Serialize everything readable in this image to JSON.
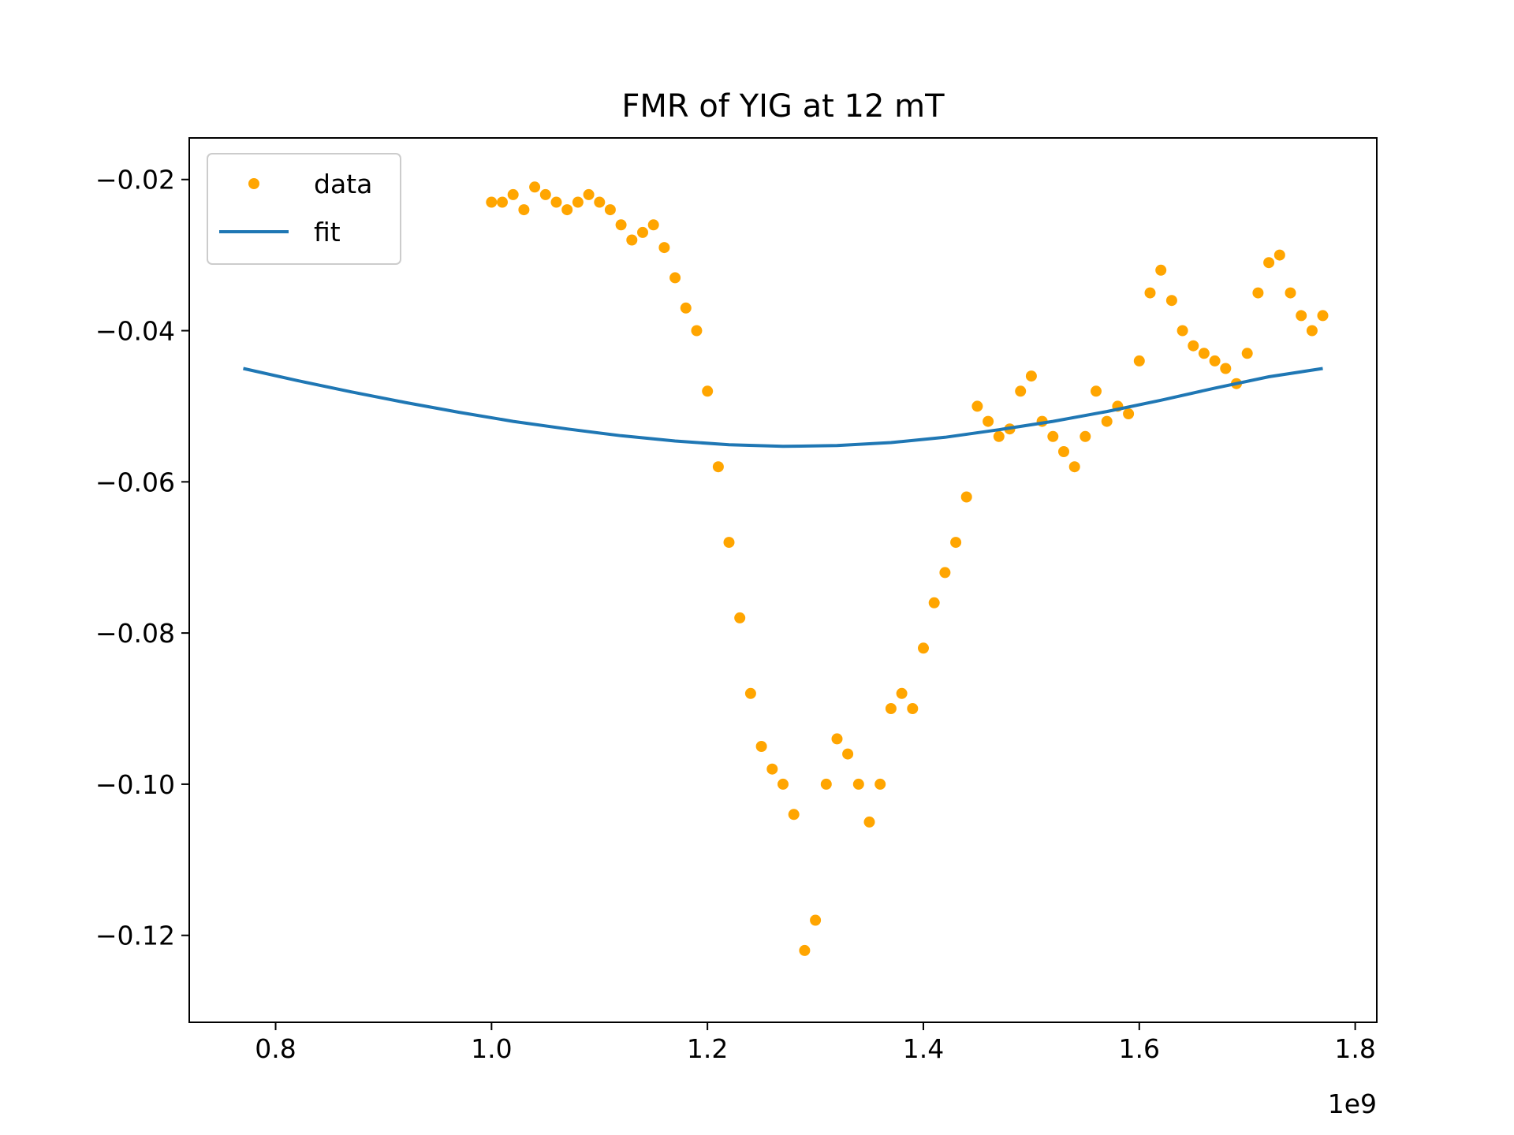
{
  "chart_data": {
    "type": "scatter",
    "title": "FMR of YIG at 12 mT",
    "xlabel": "",
    "ylabel": "",
    "x_offset_label": "1e9",
    "xlim": [
      0.72,
      1.82
    ],
    "ylim": [
      -0.1315,
      -0.0145
    ],
    "x_ticks": [
      0.8,
      1.0,
      1.2,
      1.4,
      1.6,
      1.8
    ],
    "x_tick_labels": [
      "0.8",
      "1.0",
      "1.2",
      "1.4",
      "1.6",
      "1.8"
    ],
    "y_ticks": [
      -0.02,
      -0.04,
      -0.06,
      -0.08,
      -0.1,
      -0.12
    ],
    "y_tick_labels": [
      "−0.02",
      "−0.04",
      "−0.06",
      "−0.08",
      "−0.10",
      "−0.12"
    ],
    "grid": false,
    "legend_position": "top-left",
    "series": [
      {
        "name": "data",
        "kind": "scatter",
        "color": "#ffa500",
        "x": [
          1.0,
          1.01,
          1.02,
          1.03,
          1.04,
          1.05,
          1.06,
          1.07,
          1.08,
          1.09,
          1.1,
          1.11,
          1.12,
          1.13,
          1.14,
          1.15,
          1.16,
          1.17,
          1.18,
          1.19,
          1.2,
          1.21,
          1.22,
          1.23,
          1.24,
          1.25,
          1.26,
          1.27,
          1.28,
          1.29,
          1.3,
          1.31,
          1.32,
          1.33,
          1.34,
          1.35,
          1.36,
          1.37,
          1.38,
          1.39,
          1.4,
          1.41,
          1.42,
          1.43,
          1.44,
          1.45,
          1.46,
          1.47,
          1.48,
          1.49,
          1.5,
          1.51,
          1.52,
          1.53,
          1.54,
          1.55,
          1.56,
          1.57,
          1.58,
          1.59,
          1.6,
          1.61,
          1.62,
          1.63,
          1.64,
          1.65,
          1.66,
          1.67,
          1.68,
          1.69,
          1.7,
          1.71,
          1.72,
          1.73,
          1.74,
          1.75,
          1.76,
          1.77
        ],
        "y": [
          -0.023,
          -0.023,
          -0.022,
          -0.024,
          -0.021,
          -0.022,
          -0.023,
          -0.024,
          -0.023,
          -0.022,
          -0.023,
          -0.024,
          -0.026,
          -0.028,
          -0.027,
          -0.026,
          -0.029,
          -0.033,
          -0.037,
          -0.04,
          -0.048,
          -0.058,
          -0.068,
          -0.078,
          -0.088,
          -0.095,
          -0.098,
          -0.1,
          -0.104,
          -0.122,
          -0.118,
          -0.1,
          -0.094,
          -0.096,
          -0.1,
          -0.105,
          -0.1,
          -0.09,
          -0.088,
          -0.09,
          -0.082,
          -0.076,
          -0.072,
          -0.068,
          -0.062,
          -0.05,
          -0.052,
          -0.054,
          -0.053,
          -0.048,
          -0.046,
          -0.052,
          -0.054,
          -0.056,
          -0.058,
          -0.054,
          -0.048,
          -0.052,
          -0.05,
          -0.051,
          -0.044,
          -0.035,
          -0.032,
          -0.036,
          -0.04,
          -0.042,
          -0.043,
          -0.044,
          -0.045,
          -0.047,
          -0.043,
          -0.035,
          -0.031,
          -0.03,
          -0.035,
          -0.038,
          -0.04,
          -0.038
        ]
      },
      {
        "name": "fit",
        "kind": "line",
        "color": "#1f77b4",
        "x": [
          0.77,
          0.82,
          0.87,
          0.92,
          0.97,
          1.02,
          1.07,
          1.12,
          1.17,
          1.22,
          1.27,
          1.32,
          1.37,
          1.42,
          1.47,
          1.52,
          1.57,
          1.62,
          1.67,
          1.72,
          1.77
        ],
        "y": [
          -0.045,
          -0.0466,
          -0.0481,
          -0.0495,
          -0.0508,
          -0.052,
          -0.053,
          -0.0539,
          -0.0546,
          -0.0551,
          -0.0553,
          -0.0552,
          -0.0548,
          -0.0541,
          -0.0531,
          -0.052,
          -0.0507,
          -0.0492,
          -0.0476,
          -0.0461,
          -0.045
        ]
      }
    ]
  }
}
